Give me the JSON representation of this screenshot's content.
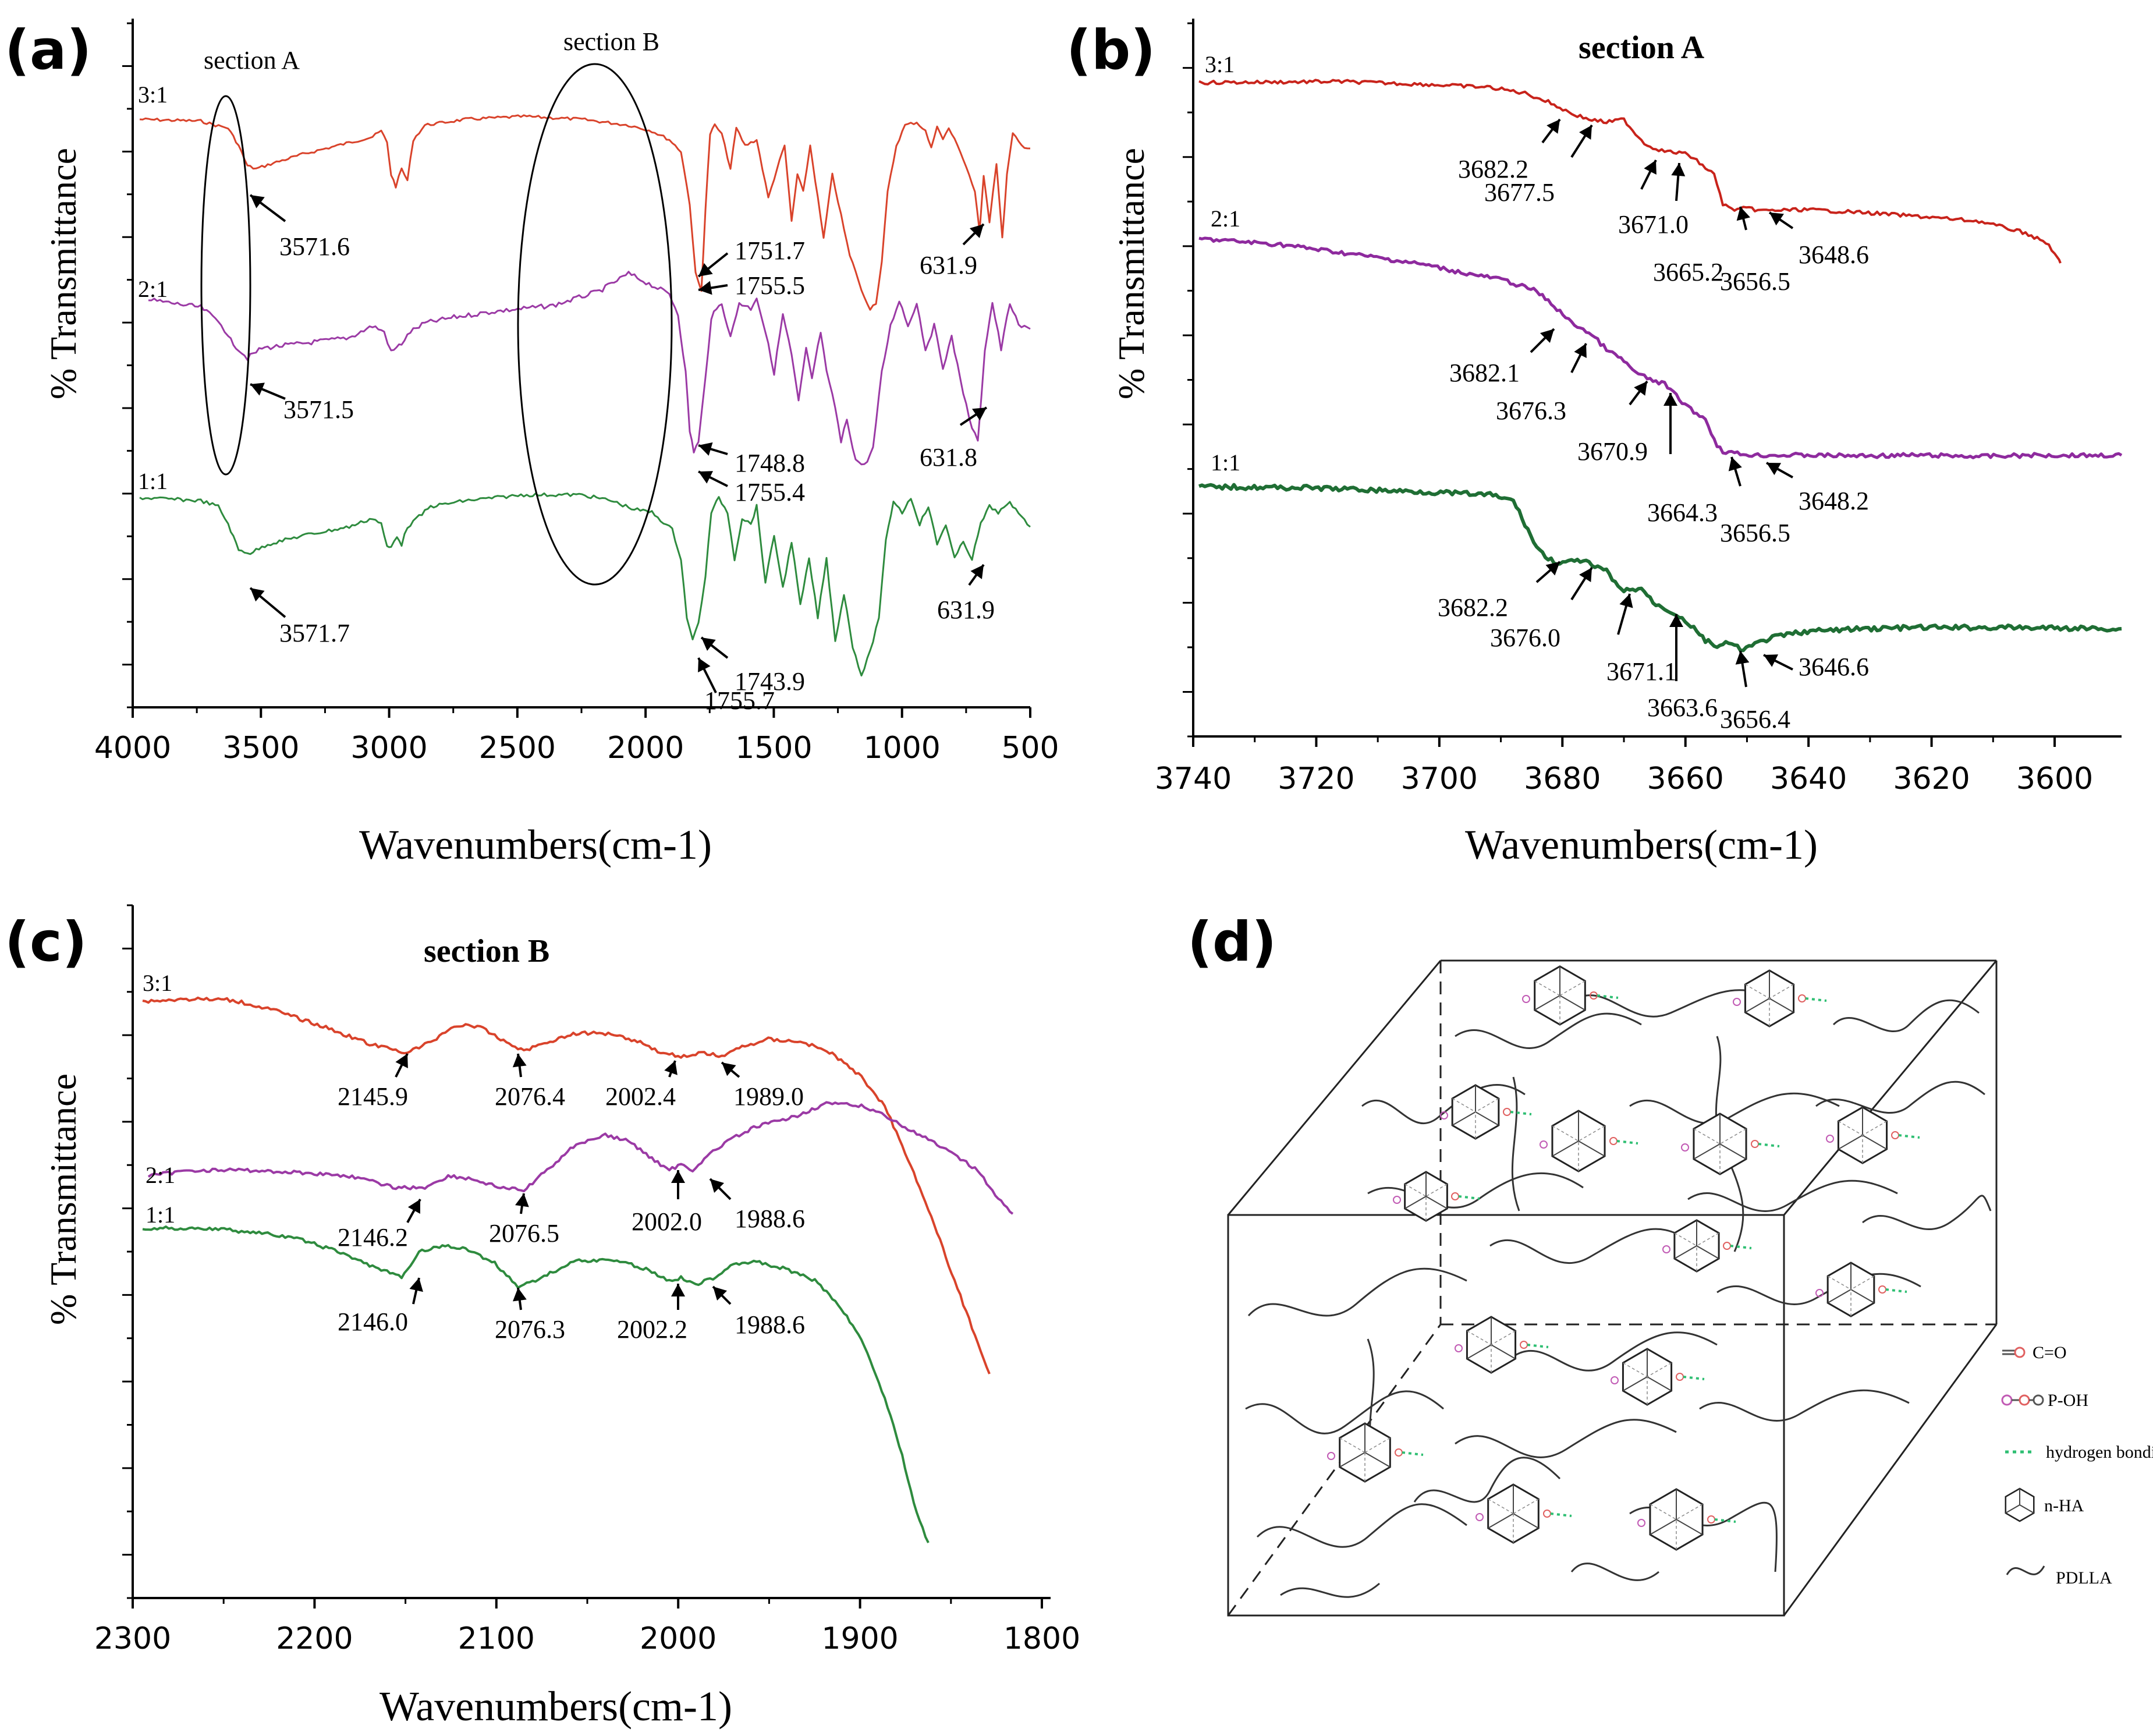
{
  "chart_data": [
    {
      "panel": "(a)",
      "type": "line",
      "title": "",
      "xlabel": "Wavenumbers(cm-1)",
      "ylabel": "% Transmittance",
      "xlim": [
        4000,
        430
      ],
      "xticks": [
        "4000",
        "3500",
        "3000",
        "2500",
        "2000",
        "1500",
        "1000",
        "500"
      ],
      "section_labels": [
        "section A",
        "section B"
      ],
      "series": [
        {
          "name": "3:1",
          "color": "#d9432b",
          "peaks": [
            {
              "label": "3571.6",
              "x": 3571.6
            },
            {
              "label": "1751.7",
              "x": 1751.7
            },
            {
              "label": "1755.5",
              "x": 1755.5
            },
            {
              "label": "631.9",
              "x": 631.9
            }
          ]
        },
        {
          "name": "2:1",
          "color": "#9b3aa5",
          "peaks": [
            {
              "label": "3571.5",
              "x": 3571.5
            },
            {
              "label": "1748.8",
              "x": 1748.8
            },
            {
              "label": "1755.4",
              "x": 1755.4
            },
            {
              "label": "631.8",
              "x": 631.8
            }
          ]
        },
        {
          "name": "1:1",
          "color": "#2e8b3e",
          "peaks": [
            {
              "label": "3571.7",
              "x": 3571.7
            },
            {
              "label": "1743.9",
              "x": 1743.9
            },
            {
              "label": "1755.7",
              "x": 1755.7
            },
            {
              "label": "631.9",
              "x": 631.9
            }
          ]
        }
      ]
    },
    {
      "panel": "(b)",
      "type": "line",
      "title": "section A",
      "xlabel": "Wavenumbers(cm-1)",
      "ylabel": "% Transmittance",
      "xlim": [
        3740,
        3590
      ],
      "xticks": [
        "3740",
        "3720",
        "3700",
        "3680",
        "3660",
        "3640",
        "3620",
        "3600"
      ],
      "series": [
        {
          "name": "3:1",
          "color": "#c8231b",
          "peaks": [
            "3682.2",
            "3677.5",
            "3671.0",
            "3665.2",
            "3656.5",
            "3648.6"
          ]
        },
        {
          "name": "2:1",
          "color": "#8e2a9e",
          "peaks": [
            "3682.1",
            "3676.3",
            "3670.9",
            "3664.3",
            "3656.5",
            "3648.2"
          ]
        },
        {
          "name": "1:1",
          "color": "#1f6e34",
          "peaks": [
            "3682.2",
            "3676.0",
            "3671.1",
            "3663.6",
            "3656.4",
            "3646.6"
          ]
        }
      ]
    },
    {
      "panel": "(c)",
      "type": "line",
      "title": "section B",
      "xlabel": "Wavenumbers(cm-1)",
      "ylabel": "% Transmittance",
      "xlim": [
        2300,
        1800
      ],
      "xticks": [
        "2300",
        "2200",
        "2100",
        "2000",
        "1900",
        "1800"
      ],
      "series": [
        {
          "name": "3:1",
          "color": "#d9432b",
          "peaks": [
            "2145.9",
            "2076.4",
            "2002.4",
            "1989.0"
          ]
        },
        {
          "name": "2:1",
          "color": "#9b3aa5",
          "peaks": [
            "2146.2",
            "2076.5",
            "2002.0",
            "1988.6"
          ]
        },
        {
          "name": "1:1",
          "color": "#2e8b3e",
          "peaks": [
            "2146.0",
            "2076.3",
            "2002.2",
            "1988.6"
          ]
        }
      ]
    }
  ],
  "diagram_d": {
    "panel": "(d)",
    "legend": [
      "C=O",
      "P-OH",
      "hydrogen bonding",
      "n-HA",
      "PDLLA"
    ]
  }
}
